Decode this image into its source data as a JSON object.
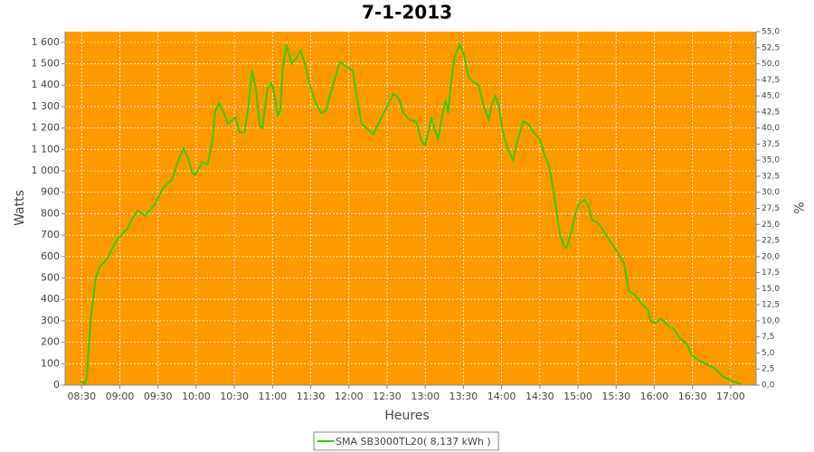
{
  "chart_data": {
    "type": "line",
    "title": "7-1-2013",
    "x_label": "Heures",
    "y_label": "Watts",
    "y2_label": "%",
    "xlim": [
      497,
      1040
    ],
    "xticks": [
      {
        "value": 510,
        "label": "08:30"
      },
      {
        "value": 540,
        "label": "09:00"
      },
      {
        "value": 570,
        "label": "09:30"
      },
      {
        "value": 600,
        "label": "10:00"
      },
      {
        "value": 630,
        "label": "10:30"
      },
      {
        "value": 660,
        "label": "11:00"
      },
      {
        "value": 690,
        "label": "11:30"
      },
      {
        "value": 720,
        "label": "12:00"
      },
      {
        "value": 750,
        "label": "12:30"
      },
      {
        "value": 780,
        "label": "13:00"
      },
      {
        "value": 810,
        "label": "13:30"
      },
      {
        "value": 840,
        "label": "14:00"
      },
      {
        "value": 870,
        "label": "14:30"
      },
      {
        "value": 900,
        "label": "15:00"
      },
      {
        "value": 930,
        "label": "15:30"
      },
      {
        "value": 960,
        "label": "16:00"
      },
      {
        "value": 990,
        "label": "16:30"
      },
      {
        "value": 1020,
        "label": "17:00"
      }
    ],
    "ylim": [
      0,
      1650
    ],
    "yticks": [
      0,
      100,
      200,
      300,
      400,
      500,
      600,
      700,
      800,
      900,
      {
        "value": 1000,
        "label": "1 000"
      },
      {
        "value": 1100,
        "label": "1 100"
      },
      {
        "value": 1200,
        "label": "1 200"
      },
      {
        "value": 1300,
        "label": "1 300"
      },
      {
        "value": 1400,
        "label": "1 400"
      },
      {
        "value": 1500,
        "label": "1 500"
      },
      {
        "value": 1600,
        "label": "1 600"
      }
    ],
    "y2lim": [
      0,
      55
    ],
    "y2ticks": [
      {
        "value": 0,
        "label": "0,0"
      },
      {
        "value": 2.5,
        "label": "2,5"
      },
      {
        "value": 5,
        "label": "5,0"
      },
      {
        "value": 7.5,
        "label": "7,5"
      },
      {
        "value": 10,
        "label": "10,0"
      },
      {
        "value": 12.5,
        "label": "12,5"
      },
      {
        "value": 15,
        "label": "15,0"
      },
      {
        "value": 17.5,
        "label": "17,5"
      },
      {
        "value": 20,
        "label": "20,0"
      },
      {
        "value": 22.5,
        "label": "22,5"
      },
      {
        "value": 25,
        "label": "25,0"
      },
      {
        "value": 27.5,
        "label": "27,5"
      },
      {
        "value": 30,
        "label": "30,0"
      },
      {
        "value": 32.5,
        "label": "32,5"
      },
      {
        "value": 35,
        "label": "35,0"
      },
      {
        "value": 37.5,
        "label": "37,5"
      },
      {
        "value": 40,
        "label": "40,0"
      },
      {
        "value": 42.5,
        "label": "42,5"
      },
      {
        "value": 45,
        "label": "45,0"
      },
      {
        "value": 47.5,
        "label": "47,5"
      },
      {
        "value": 50,
        "label": "50,0"
      },
      {
        "value": 52.5,
        "label": "52,5"
      },
      {
        "value": 55,
        "label": "55,0"
      }
    ],
    "grid": true,
    "plot_background": "#ff9900",
    "legend": "bottom",
    "x": [
      509,
      512,
      514,
      517,
      519,
      521,
      524,
      528,
      531,
      535,
      538,
      546,
      550,
      554,
      560,
      567,
      574,
      581,
      586,
      590,
      593,
      597,
      599,
      605,
      609,
      613,
      615,
      618,
      621,
      625,
      631,
      634,
      638,
      641,
      644,
      647,
      650,
      652,
      656,
      659,
      661,
      664,
      666,
      668,
      671,
      675,
      678,
      682,
      685,
      689,
      693,
      698,
      702,
      705,
      709,
      713,
      717,
      723,
      727,
      730,
      734,
      739,
      744,
      750,
      755,
      759,
      763,
      767,
      773,
      777,
      780,
      783,
      785,
      787,
      790,
      793,
      796,
      798,
      800,
      803,
      807,
      810,
      814,
      819,
      822,
      826,
      830,
      832,
      835,
      838,
      841,
      845,
      849,
      852,
      857,
      861,
      865,
      870,
      874,
      877,
      881,
      884,
      886,
      889,
      891,
      895,
      898,
      901,
      905,
      908,
      911,
      915,
      918,
      922,
      928,
      933,
      936,
      940,
      945,
      950,
      955,
      957,
      961,
      965,
      968,
      972,
      975,
      980,
      986,
      989,
      994,
      1000,
      1007,
      1014,
      1021,
      1028
    ],
    "series": [
      {
        "name": "SMA SB3000TL20( 8,137 kWh )",
        "color": "#33cc00",
        "values": [
          17,
          5,
          30,
          300,
          400,
          500,
          550,
          575,
          600,
          650,
          680,
          730,
          780,
          815,
          790,
          840,
          920,
          960,
          1050,
          1105,
          1070,
          990,
          980,
          1040,
          1030,
          1150,
          1280,
          1315,
          1280,
          1220,
          1250,
          1180,
          1180,
          1300,
          1470,
          1380,
          1210,
          1200,
          1380,
          1410,
          1370,
          1260,
          1280,
          1480,
          1590,
          1500,
          1520,
          1560,
          1510,
          1410,
          1330,
          1270,
          1280,
          1350,
          1430,
          1510,
          1490,
          1470,
          1320,
          1220,
          1200,
          1170,
          1230,
          1300,
          1360,
          1340,
          1270,
          1240,
          1230,
          1140,
          1120,
          1200,
          1250,
          1200,
          1150,
          1250,
          1330,
          1270,
          1400,
          1530,
          1590,
          1550,
          1440,
          1410,
          1400,
          1300,
          1240,
          1300,
          1350,
          1300,
          1180,
          1100,
          1050,
          1130,
          1230,
          1220,
          1180,
          1150,
          1070,
          1030,
          900,
          780,
          700,
          650,
          640,
          720,
          800,
          850,
          865,
          840,
          770,
          760,
          740,
          700,
          650,
          600,
          570,
          440,
          420,
          380,
          350,
          300,
          290,
          310,
          295,
          270,
          265,
          220,
          190,
          140,
          120,
          100,
          80,
          40,
          20,
          5
        ]
      }
    ]
  }
}
